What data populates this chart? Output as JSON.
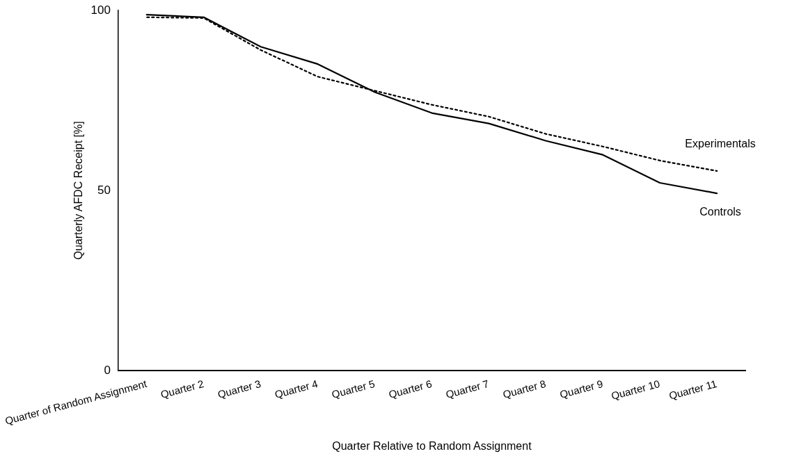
{
  "chart_data": {
    "type": "line",
    "xlabel": "Quarter Relative to Random Assignment",
    "ylabel": "Quarterly AFDC Receipt [%]",
    "categories": [
      "Quarter of Random Assignment",
      "Quarter 2",
      "Quarter 3",
      "Quarter 4",
      "Quarter 5",
      "Quarter 6",
      "Quarter 7",
      "Quarter 8",
      "Quarter 9",
      "Quarter 10",
      "Quarter 11"
    ],
    "series": [
      {
        "name": "Experimentals",
        "color": "#000000",
        "line_style": "dotted",
        "values": [
          98.1,
          97.9,
          89,
          81.6,
          77.7,
          73.8,
          70.5,
          65.7,
          62.2,
          58.3,
          55.4
        ]
      },
      {
        "name": "Controls",
        "color": "#000000",
        "line_style": "solid",
        "values": [
          98.8,
          98.1,
          89.9,
          85.1,
          77.3,
          71.5,
          68.6,
          63.8,
          59.9,
          52.1,
          49.2
        ]
      }
    ],
    "ylim": [
      0,
      100
    ],
    "yticks": [
      0,
      50,
      100
    ],
    "grid": false,
    "legend": false,
    "marker": "none"
  }
}
